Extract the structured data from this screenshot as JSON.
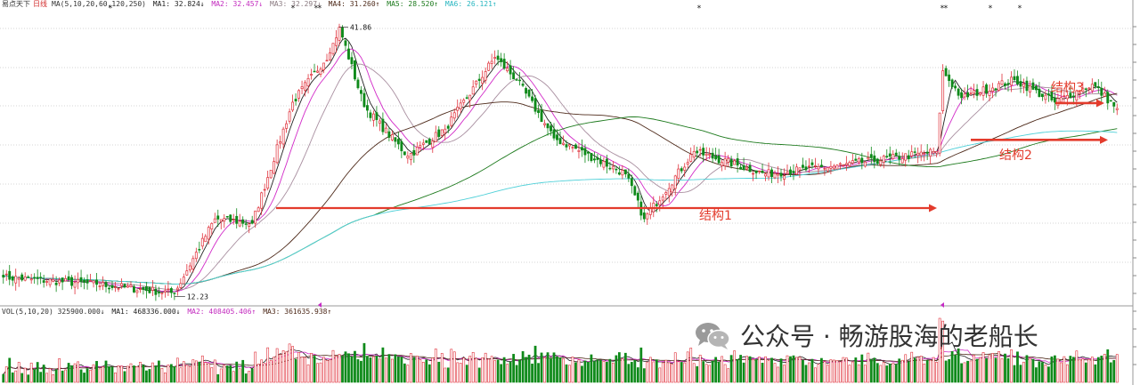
{
  "colors": {
    "up": "#e0303a",
    "down": "#0f8a1a",
    "ma5": "#222222",
    "ma10": "#d22ac8",
    "ma20": "#a98fa0",
    "ma60": "#4e2a1a",
    "ma120": "#1d7a1d",
    "ma250": "#4fd0d8",
    "arrow": "#e33b2c",
    "grid": "#c9c9c9"
  },
  "header": {
    "title_prefix": "易点天下",
    "title_period": "日线",
    "ma_params": "MA(5,10,20,60,120,250)",
    "ma1": "MA1: 32.824↓",
    "ma2": "MA2: 32.457↓",
    "ma3": "MA3: 32.297↓",
    "ma4": "MA4: 31.260↑",
    "ma5": "MA5: 28.520↑",
    "ma6": "MA6: 26.121↑"
  },
  "volume_header": {
    "params": "VOL(5,10,20) 325900.000↓",
    "ma1": "MA1: 468336.000↓",
    "ma2": "MA2: 408405.406↑",
    "ma3": "MA3: 361635.938↑"
  },
  "watermark": {
    "icon": "wechat-icon",
    "text": "公众号 · 畅游股海的老船长"
  },
  "chart_data": {
    "type": "candlestick",
    "price_range": [
      11.2,
      43.5
    ],
    "marks": {
      "high_label": "41.86",
      "low_label": "12.23"
    },
    "annotations": [
      {
        "label": "结构1",
        "level": 21.7
      },
      {
        "label": "结构2",
        "level": 29.3
      },
      {
        "label": "结构3",
        "level": 33.4
      }
    ],
    "key_points": [
      {
        "i": 0,
        "price": 14.0
      },
      {
        "i": 30,
        "price": 13.2
      },
      {
        "i": 55,
        "price": 12.23
      },
      {
        "i": 68,
        "price": 20.5
      },
      {
        "i": 80,
        "price": 20.0
      },
      {
        "i": 93,
        "price": 33.5
      },
      {
        "i": 105,
        "price": 39.0
      },
      {
        "i": 108,
        "price": 41.86
      },
      {
        "i": 116,
        "price": 33.0
      },
      {
        "i": 130,
        "price": 27.5
      },
      {
        "i": 142,
        "price": 30.5
      },
      {
        "i": 158,
        "price": 38.5
      },
      {
        "i": 165,
        "price": 36.0
      },
      {
        "i": 177,
        "price": 29.5
      },
      {
        "i": 200,
        "price": 25.5
      },
      {
        "i": 206,
        "price": 20.5
      },
      {
        "i": 222,
        "price": 28.0
      },
      {
        "i": 245,
        "price": 25.5
      },
      {
        "i": 270,
        "price": 26.5
      },
      {
        "i": 300,
        "price": 28.0
      },
      {
        "i": 302,
        "price": 37.0
      },
      {
        "i": 308,
        "price": 34.0
      },
      {
        "i": 325,
        "price": 36.0
      },
      {
        "i": 338,
        "price": 33.5
      },
      {
        "i": 350,
        "price": 35.5
      },
      {
        "i": 358,
        "price": 32.8
      }
    ]
  }
}
